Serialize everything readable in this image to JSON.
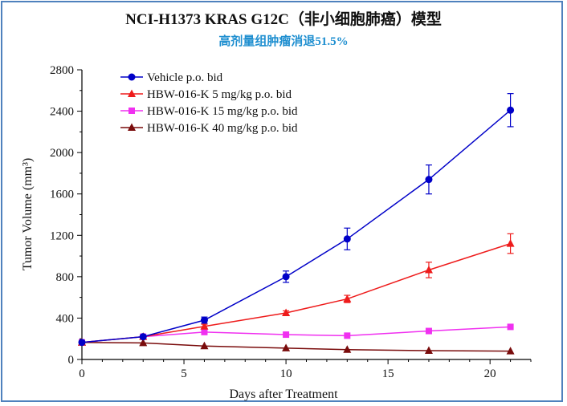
{
  "chart_data": {
    "type": "line",
    "title": "NCI-H1373 KRAS G12C（非小细胞肺癌）模型",
    "subtitle": "高剂量组肿瘤消退51.5%",
    "xlabel": "Days after Treatment",
    "ylabel": "Tumor Volume (mm³)",
    "xlim": [
      0,
      22
    ],
    "ylim": [
      0,
      2800
    ],
    "x_ticks": [
      0,
      5,
      10,
      15,
      20
    ],
    "y_ticks": [
      0,
      400,
      800,
      1200,
      1600,
      2000,
      2400,
      2800
    ],
    "grid": false,
    "legend_position": "top-left",
    "series": [
      {
        "name": "Vehicle p.o. bid",
        "color": "#0000c8",
        "marker": "circle",
        "points": [
          {
            "x": 0,
            "y": 165
          },
          {
            "x": 3,
            "y": 220
          },
          {
            "x": 6,
            "y": 380,
            "err": 30
          },
          {
            "x": 10,
            "y": 800,
            "err": 55
          },
          {
            "x": 13,
            "y": 1165,
            "err": 105
          },
          {
            "x": 17,
            "y": 1740,
            "err": 140
          },
          {
            "x": 21,
            "y": 2410,
            "err": 160
          }
        ]
      },
      {
        "name": "HBW-016-K 5 mg/kg p.o. bid",
        "color": "#ee1c1c",
        "marker": "triangle",
        "points": [
          {
            "x": 0,
            "y": 165
          },
          {
            "x": 3,
            "y": 220
          },
          {
            "x": 6,
            "y": 320,
            "err": 20
          },
          {
            "x": 10,
            "y": 450,
            "err": 20
          },
          {
            "x": 13,
            "y": 585,
            "err": 35
          },
          {
            "x": 17,
            "y": 865,
            "err": 75
          },
          {
            "x": 21,
            "y": 1120,
            "err": 95
          }
        ]
      },
      {
        "name": "HBW-016-K 15 mg/kg p.o. bid",
        "color": "#f030f0",
        "marker": "square",
        "points": [
          {
            "x": 0,
            "y": 165
          },
          {
            "x": 3,
            "y": 220
          },
          {
            "x": 6,
            "y": 265
          },
          {
            "x": 10,
            "y": 240
          },
          {
            "x": 13,
            "y": 230
          },
          {
            "x": 17,
            "y": 275
          },
          {
            "x": 21,
            "y": 315
          }
        ]
      },
      {
        "name": "HBW-016-K 40 mg/kg p.o. bid",
        "color": "#7a0c0c",
        "marker": "triangle",
        "points": [
          {
            "x": 0,
            "y": 165
          },
          {
            "x": 3,
            "y": 160
          },
          {
            "x": 6,
            "y": 130
          },
          {
            "x": 10,
            "y": 110
          },
          {
            "x": 13,
            "y": 95
          },
          {
            "x": 17,
            "y": 85
          },
          {
            "x": 21,
            "y": 80
          }
        ]
      }
    ]
  }
}
